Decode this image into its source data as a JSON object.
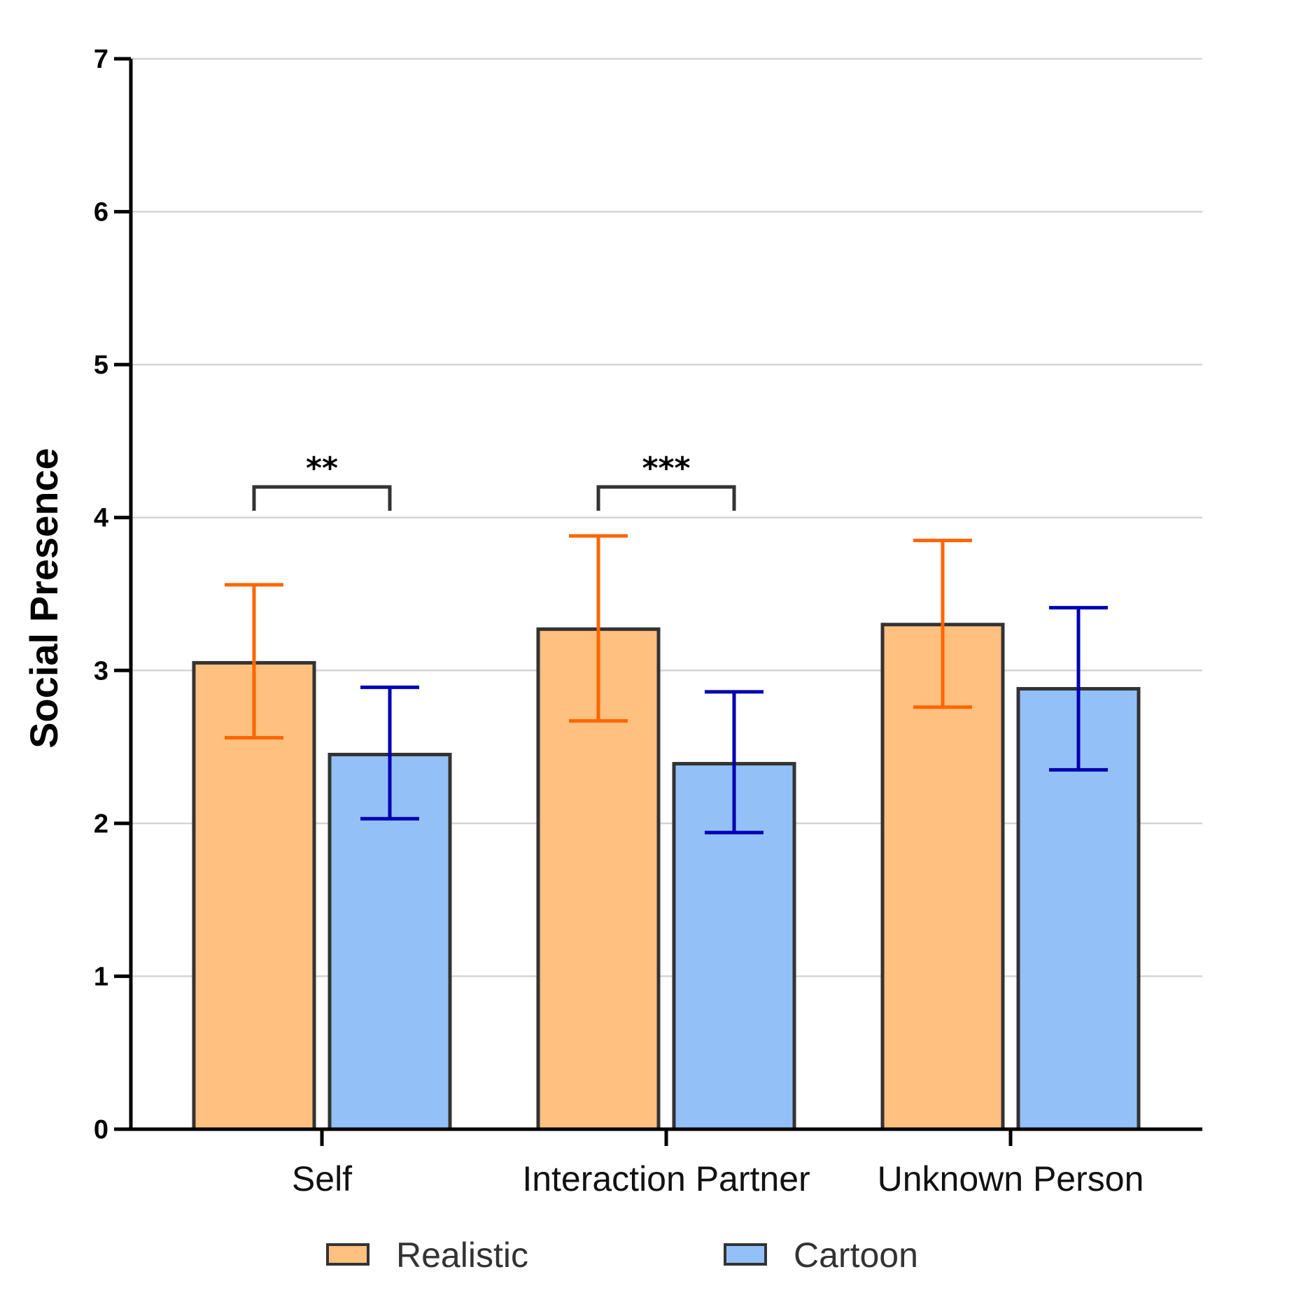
{
  "chart_data": {
    "type": "bar",
    "ylabel": "Social Presence",
    "xlabel": "",
    "ylim": [
      0,
      7
    ],
    "yticks": [
      "0",
      "1",
      "2",
      "3",
      "4",
      "5",
      "6",
      "7"
    ],
    "grid": "horizontal",
    "legend_position": "bottom",
    "categories": [
      "Self",
      "Interaction Partner",
      "Unknown Person"
    ],
    "series": [
      {
        "name": "Realistic",
        "fill": "#ffc080",
        "error_color": "#ff6600",
        "values": [
          3.05,
          3.27,
          3.3
        ],
        "error_low": [
          2.56,
          2.67,
          2.76
        ],
        "error_high": [
          3.56,
          3.88,
          3.85
        ]
      },
      {
        "name": "Cartoon",
        "fill": "#94c0f8",
        "error_color": "#0000b4",
        "values": [
          2.45,
          2.39,
          2.88
        ],
        "error_low": [
          2.03,
          1.94,
          2.35
        ],
        "error_high": [
          2.89,
          2.86,
          3.41
        ]
      }
    ],
    "annotations": [
      {
        "category": "Self",
        "text": "**",
        "level": 4.2
      },
      {
        "category": "Interaction Partner",
        "text": "***",
        "level": 4.2
      }
    ],
    "colors": {
      "bar_outline": "#333333",
      "gridline": "#d4d4d4",
      "axis": "#000000",
      "bracket": "#333333"
    }
  }
}
